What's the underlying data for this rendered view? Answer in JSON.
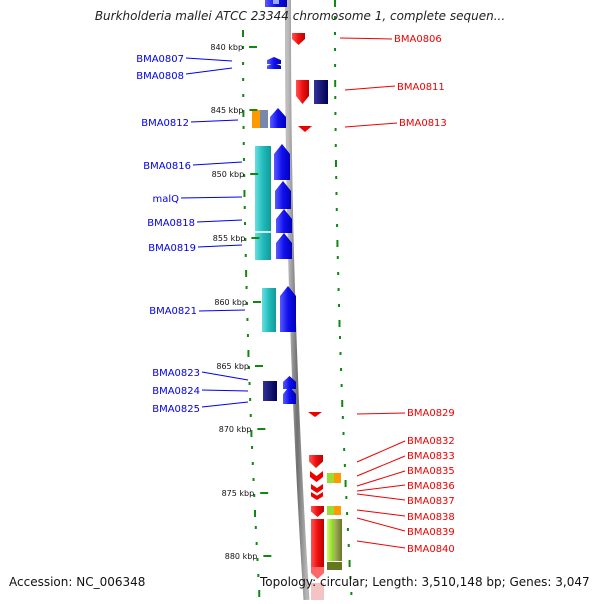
{
  "title": "Burkholderia mallei ATCC 23344 chromosome 1, complete sequen...",
  "footer": {
    "accession": "Accession: NC_006348",
    "topology": "Topology: circular; Length: 3,510,148 bp; Genes: 3,047"
  },
  "ticks": [
    "840 kbp",
    "845 kbp",
    "850 kbp",
    "855 kbp",
    "860 kbp",
    "865 kbp",
    "870 kbp",
    "875 kbp",
    "880 kbp"
  ],
  "left_genes": [
    "BMA0807",
    "BMA0808",
    "BMA0812",
    "BMA0816",
    "malQ",
    "BMA0818",
    "BMA0819",
    "BMA0821",
    "BMA0823",
    "BMA0824",
    "BMA0825"
  ],
  "right_genes": [
    "BMA0806",
    "BMA0811",
    "BMA0813",
    "BMA0829",
    "BMA0832",
    "BMA0833",
    "BMA0835",
    "BMA0836",
    "BMA0837",
    "BMA0838",
    "BMA0839",
    "BMA0840"
  ],
  "colors": {
    "forward_strand": "#0000ee",
    "reverse_strand": "#ee0000",
    "cog_cyan": "#33cccc",
    "cog_navy": "#000066",
    "cog_orange": "#ff9900",
    "cog_lime": "#99dd33",
    "cog_olive": "#778833",
    "backbone": "#8a8a8a",
    "tick_green": "#118811"
  }
}
